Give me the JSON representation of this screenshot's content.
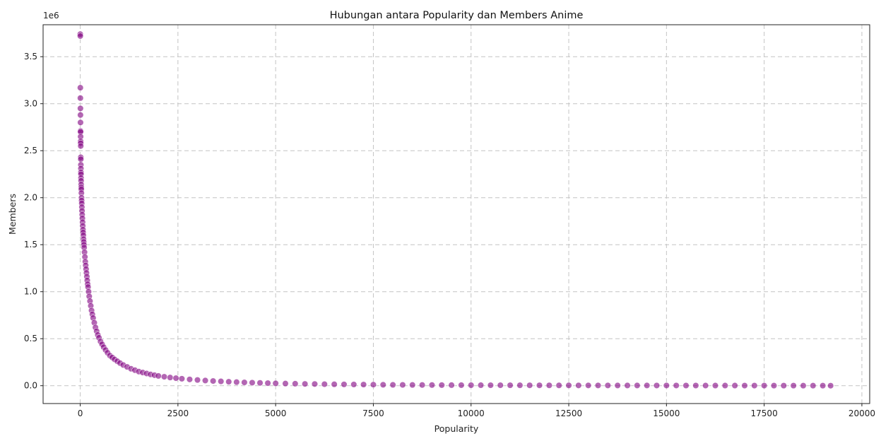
{
  "chart_data": {
    "type": "scatter",
    "title": "Hubungan antara Popularity dan Members Anime",
    "xlabel": "Popularity",
    "ylabel": "Members",
    "y_offset_label": "1e6",
    "xlim": [
      -950,
      20200
    ],
    "ylim": [
      -0.19,
      3.84
    ],
    "x_ticks": [
      0,
      2500,
      5000,
      7500,
      10000,
      12500,
      15000,
      17500,
      20000
    ],
    "x_tick_labels": [
      "0",
      "2500",
      "5000",
      "7500",
      "10000",
      "12500",
      "15000",
      "17500",
      "20000"
    ],
    "y_ticks": [
      0.0,
      0.5,
      1.0,
      1.5,
      2.0,
      2.5,
      3.0,
      3.5
    ],
    "y_tick_labels": [
      "0.0",
      "0.5",
      "1.0",
      "1.5",
      "2.0",
      "2.5",
      "3.0",
      "3.5"
    ],
    "grid": true,
    "point_color": "#800080",
    "point_edge_color": "#ffffff",
    "point_opacity": 0.6,
    "points": [
      [
        1,
        3.74
      ],
      [
        2,
        3.72
      ],
      [
        3,
        3.17
      ],
      [
        4,
        3.06
      ],
      [
        5,
        2.95
      ],
      [
        6,
        2.88
      ],
      [
        7,
        2.8
      ],
      [
        8,
        2.71
      ],
      [
        9,
        2.7
      ],
      [
        10,
        2.65
      ],
      [
        11,
        2.6
      ],
      [
        12,
        2.58
      ],
      [
        13,
        2.55
      ],
      [
        14,
        2.43
      ],
      [
        15,
        2.41
      ],
      [
        16,
        2.35
      ],
      [
        17,
        2.31
      ],
      [
        18,
        2.27
      ],
      [
        19,
        2.25
      ],
      [
        20,
        2.21
      ],
      [
        22,
        2.18
      ],
      [
        24,
        2.14
      ],
      [
        26,
        2.11
      ],
      [
        28,
        2.09
      ],
      [
        30,
        2.05
      ],
      [
        33,
        2.0
      ],
      [
        36,
        1.97
      ],
      [
        39,
        1.94
      ],
      [
        42,
        1.9
      ],
      [
        46,
        1.86
      ],
      [
        50,
        1.82
      ],
      [
        55,
        1.78
      ],
      [
        60,
        1.74
      ],
      [
        65,
        1.7
      ],
      [
        70,
        1.66
      ],
      [
        75,
        1.63
      ],
      [
        80,
        1.6
      ],
      [
        85,
        1.56
      ],
      [
        90,
        1.53
      ],
      [
        95,
        1.5
      ],
      [
        100,
        1.47
      ],
      [
        110,
        1.42
      ],
      [
        120,
        1.37
      ],
      [
        130,
        1.32
      ],
      [
        140,
        1.28
      ],
      [
        150,
        1.24
      ],
      [
        160,
        1.2
      ],
      [
        170,
        1.16
      ],
      [
        180,
        1.12
      ],
      [
        190,
        1.08
      ],
      [
        200,
        1.05
      ],
      [
        215,
        1.0
      ],
      [
        230,
        0.95
      ],
      [
        250,
        0.9
      ],
      [
        270,
        0.85
      ],
      [
        290,
        0.8
      ],
      [
        310,
        0.76
      ],
      [
        330,
        0.72
      ],
      [
        360,
        0.67
      ],
      [
        390,
        0.62
      ],
      [
        420,
        0.58
      ],
      [
        450,
        0.54
      ],
      [
        480,
        0.51
      ],
      [
        520,
        0.47
      ],
      [
        560,
        0.44
      ],
      [
        600,
        0.41
      ],
      [
        650,
        0.38
      ],
      [
        700,
        0.35
      ],
      [
        760,
        0.32
      ],
      [
        820,
        0.3
      ],
      [
        880,
        0.28
      ],
      [
        950,
        0.26
      ],
      [
        1020,
        0.24
      ],
      [
        1100,
        0.22
      ],
      [
        1200,
        0.2
      ],
      [
        1300,
        0.18
      ],
      [
        1400,
        0.165
      ],
      [
        1500,
        0.15
      ],
      [
        1600,
        0.14
      ],
      [
        1700,
        0.13
      ],
      [
        1800,
        0.12
      ],
      [
        1900,
        0.112
      ],
      [
        2000,
        0.104
      ],
      [
        2150,
        0.095
      ],
      [
        2300,
        0.087
      ],
      [
        2450,
        0.08
      ],
      [
        2600,
        0.074
      ],
      [
        2800,
        0.067
      ],
      [
        3000,
        0.061
      ],
      [
        3200,
        0.055
      ],
      [
        3400,
        0.05
      ],
      [
        3600,
        0.046
      ],
      [
        3800,
        0.042
      ],
      [
        4000,
        0.038
      ],
      [
        4200,
        0.035
      ],
      [
        4400,
        0.032
      ],
      [
        4600,
        0.03
      ],
      [
        4800,
        0.027
      ],
      [
        5000,
        0.025
      ],
      [
        5250,
        0.023
      ],
      [
        5500,
        0.021
      ],
      [
        5750,
        0.019
      ],
      [
        6000,
        0.018
      ],
      [
        6250,
        0.016
      ],
      [
        6500,
        0.015
      ],
      [
        6750,
        0.014
      ],
      [
        7000,
        0.013
      ],
      [
        7250,
        0.012
      ],
      [
        7500,
        0.011
      ],
      [
        7750,
        0.01
      ],
      [
        8000,
        0.009
      ],
      [
        8250,
        0.0085
      ],
      [
        8500,
        0.008
      ],
      [
        8750,
        0.0075
      ],
      [
        9000,
        0.007
      ],
      [
        9250,
        0.0065
      ],
      [
        9500,
        0.006
      ],
      [
        9750,
        0.0058
      ],
      [
        10000,
        0.0055
      ],
      [
        10250,
        0.0052
      ],
      [
        10500,
        0.005
      ],
      [
        10750,
        0.0047
      ],
      [
        11000,
        0.0045
      ],
      [
        11250,
        0.0043
      ],
      [
        11500,
        0.004
      ],
      [
        11750,
        0.0038
      ],
      [
        12000,
        0.0036
      ],
      [
        12250,
        0.0034
      ],
      [
        12500,
        0.0032
      ],
      [
        12750,
        0.003
      ],
      [
        13000,
        0.0028
      ],
      [
        13250,
        0.0027
      ],
      [
        13500,
        0.0026
      ],
      [
        13750,
        0.0025
      ],
      [
        14000,
        0.0024
      ],
      [
        14250,
        0.0023
      ],
      [
        14500,
        0.0022
      ],
      [
        14750,
        0.0021
      ],
      [
        15000,
        0.002
      ],
      [
        15250,
        0.0019
      ],
      [
        15500,
        0.0018
      ],
      [
        15750,
        0.0017
      ],
      [
        16000,
        0.0016
      ],
      [
        16250,
        0.0015
      ],
      [
        16500,
        0.0014
      ],
      [
        16750,
        0.0013
      ],
      [
        17000,
        0.0012
      ],
      [
        17250,
        0.0011
      ],
      [
        17500,
        0.001
      ],
      [
        17750,
        0.0009
      ],
      [
        18000,
        0.0008
      ],
      [
        18250,
        0.0007
      ],
      [
        18500,
        0.0006
      ],
      [
        18750,
        0.0005
      ],
      [
        19000,
        0.0004
      ],
      [
        19200,
        0.0003
      ]
    ]
  }
}
